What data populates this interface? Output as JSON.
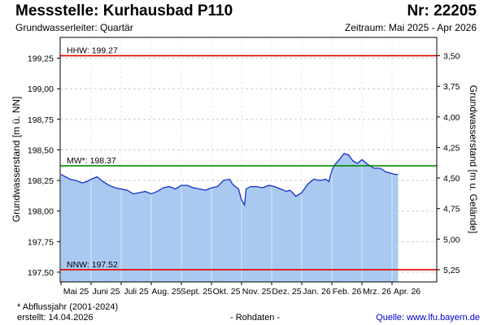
{
  "header": {
    "title": "Messstelle: Kurhausbad P110",
    "nr": "Nr: 22205",
    "subtitle": "Grundwasserleiter: Quartär",
    "period": "Zeitraum: Mai 2025 - Apr 2026"
  },
  "footer": {
    "note": "* Abflussjahr (2001-2024)",
    "created": "erstellt:  14.04.2026",
    "raw": "- Rohdaten -",
    "source": "Quelle: www.lfu.bayern.de"
  },
  "colors": {
    "area_fill": "#a9c9f1",
    "line": "#1530c8",
    "hhw": "#e60000",
    "mw": "#008a00",
    "nnw": "#e60000",
    "grid": "#cccccc"
  },
  "chart_data": {
    "type": "area",
    "ylabel": "Grundwasserstand [m ü. NN]",
    "y2label": "Grundwasserstand [m u. Gelände]",
    "ylim": [
      197.42,
      199.42
    ],
    "yticks": [
      "199,25",
      "199,00",
      "198,75",
      "198,50",
      "198,25",
      "198,00",
      "197,75",
      "197,50"
    ],
    "ytick_values": [
      199.25,
      199.0,
      198.75,
      198.5,
      198.25,
      198.0,
      197.75,
      197.5
    ],
    "y2ticks": [
      "3,50",
      "3,75",
      "4,00",
      "4,25",
      "4,50",
      "4,75",
      "5,00",
      "5,25"
    ],
    "y2tick_values": [
      3.5,
      3.75,
      4.0,
      4.25,
      4.5,
      4.75,
      5.0,
      5.25
    ],
    "y2_reference": 202.77,
    "xlabels": [
      "Mai 25",
      "Juni 25",
      "Juli 25",
      "Aug. 25",
      "Sept. 25",
      "Okt. 25",
      "Nov. 25",
      "Dez. 25",
      "Jan. 26",
      "Feb. 26",
      "Mrz. 26",
      "Apr. 26"
    ],
    "x_months": 12,
    "grid": true,
    "reference_lines": [
      {
        "label": "HHW: 199.27",
        "value": 199.27,
        "color": "hhw"
      },
      {
        "label": "MW*: 198.37",
        "value": 198.37,
        "color": "mw"
      },
      {
        "label": "NNW: 197.52",
        "value": 197.52,
        "color": "nnw"
      }
    ],
    "series": [
      {
        "x": [
          0,
          0.15,
          0.3,
          0.5,
          0.7,
          0.85,
          1.0,
          1.2,
          1.4,
          1.6,
          1.8,
          2.0,
          2.2,
          2.4,
          2.6,
          2.8,
          3.0,
          3.2,
          3.4,
          3.6,
          3.8,
          4.0,
          4.2,
          4.4,
          4.6,
          4.8,
          5.0,
          5.2,
          5.4,
          5.6,
          5.7,
          5.9,
          6.0,
          6.1,
          6.15,
          6.3,
          6.5,
          6.7,
          6.9,
          7.1,
          7.3,
          7.5,
          7.6,
          7.7,
          7.8,
          8.0,
          8.2,
          8.4,
          8.6,
          8.8,
          8.9,
          9.0,
          9.1,
          9.25,
          9.4,
          9.55,
          9.7,
          9.85,
          10.0,
          10.2,
          10.4,
          10.6,
          10.8,
          10.95,
          11.1,
          11.2
        ],
        "y": [
          198.3,
          198.28,
          198.26,
          198.25,
          198.23,
          198.24,
          198.26,
          198.28,
          198.24,
          198.21,
          198.19,
          198.18,
          198.17,
          198.14,
          198.15,
          198.16,
          198.14,
          198.16,
          198.19,
          198.2,
          198.18,
          198.21,
          198.21,
          198.19,
          198.18,
          198.17,
          198.19,
          198.2,
          198.25,
          198.26,
          198.22,
          198.18,
          198.09,
          198.05,
          198.18,
          198.2,
          198.2,
          198.19,
          198.21,
          198.2,
          198.18,
          198.16,
          198.17,
          198.15,
          198.12,
          198.15,
          198.22,
          198.26,
          198.25,
          198.26,
          198.24,
          198.33,
          198.38,
          198.42,
          198.47,
          198.46,
          198.41,
          198.39,
          198.42,
          198.38,
          198.35,
          198.35,
          198.32,
          198.31,
          198.3,
          198.3
        ]
      }
    ]
  }
}
